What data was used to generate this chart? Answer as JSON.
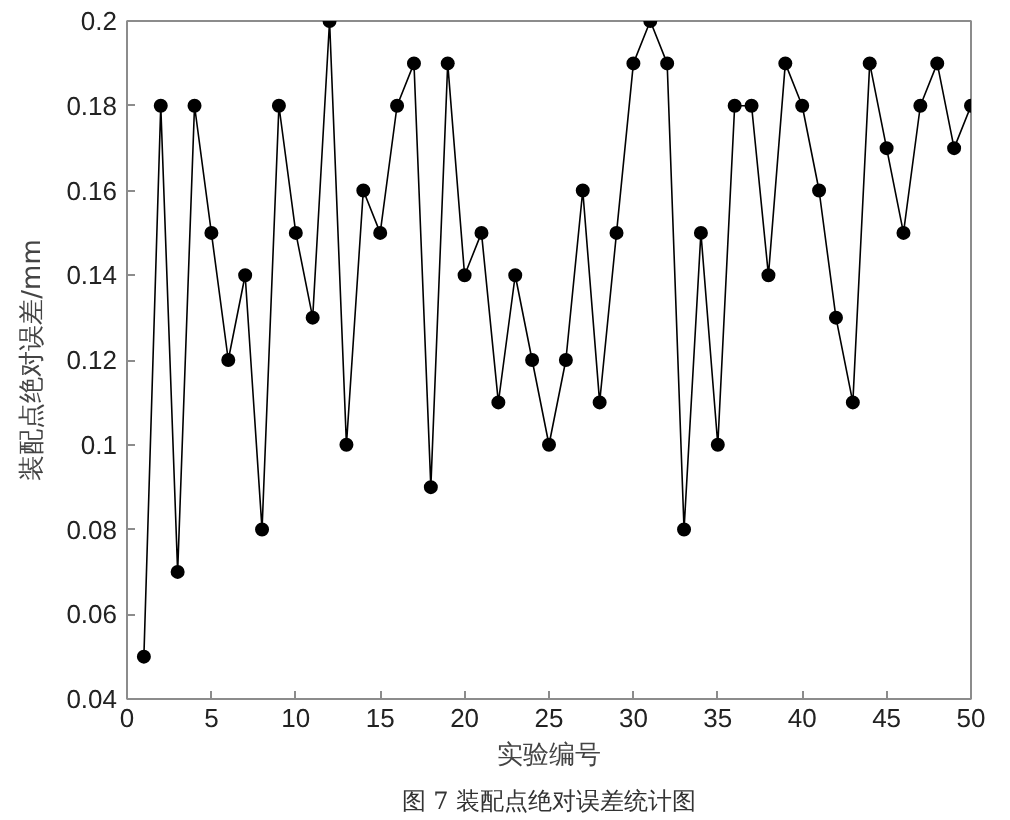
{
  "chart_data": {
    "type": "line",
    "xlabel": "实验编号",
    "ylabel": "装配点绝对误差/mm",
    "annotations": [
      "图 7 装配点绝对误差统计图"
    ],
    "x": [
      1,
      2,
      3,
      4,
      5,
      6,
      7,
      8,
      9,
      10,
      11,
      12,
      13,
      14,
      15,
      16,
      17,
      18,
      19,
      20,
      21,
      22,
      23,
      24,
      25,
      26,
      27,
      28,
      29,
      30,
      31,
      32,
      33,
      34,
      35,
      36,
      37,
      38,
      39,
      40,
      41,
      42,
      43,
      44,
      45,
      46,
      47,
      48,
      49,
      50
    ],
    "series": [
      {
        "color": "#000000",
        "values": [
          0.05,
          0.18,
          0.07,
          0.18,
          0.15,
          0.12,
          0.14,
          0.08,
          0.18,
          0.15,
          0.13,
          0.2,
          0.1,
          0.16,
          0.15,
          0.18,
          0.19,
          0.09,
          0.19,
          0.14,
          0.15,
          0.11,
          0.14,
          0.12,
          0.1,
          0.12,
          0.16,
          0.11,
          0.15,
          0.19,
          0.2,
          0.19,
          0.08,
          0.15,
          0.1,
          0.18,
          0.18,
          0.14,
          0.19,
          0.18,
          0.16,
          0.13,
          0.11,
          0.19,
          0.17,
          0.15,
          0.18,
          0.19,
          0.17,
          0.18
        ]
      }
    ],
    "marker": "circle",
    "line_style": "solid",
    "grid": false,
    "xlim": [
      0,
      50
    ],
    "ylim": [
      0.04,
      0.2
    ],
    "xticks": [
      0,
      5,
      10,
      15,
      20,
      25,
      30,
      35,
      40,
      45,
      50
    ],
    "yticks": [
      0.04,
      0.06,
      0.08,
      0.1,
      0.12,
      0.14,
      0.16,
      0.18,
      0.2
    ]
  }
}
